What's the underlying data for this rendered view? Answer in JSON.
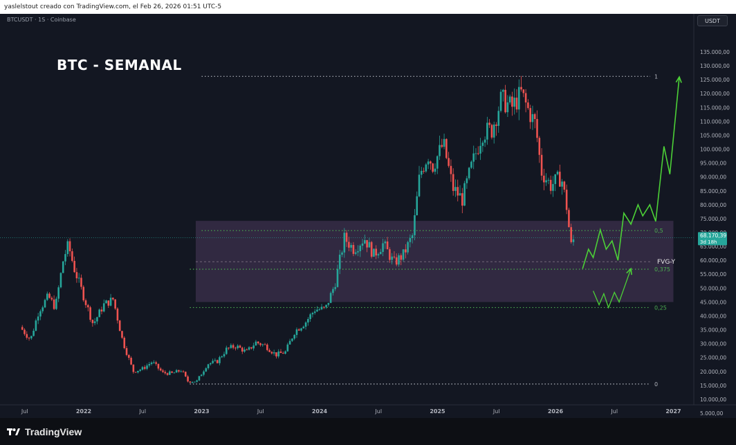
{
  "header": {
    "attribution": "yaslelstout creado con TradingView.com, el Feb 26, 2026 01:51 UTC-5"
  },
  "symbol_line": "BTCUSDT · 1S · Coinbase",
  "currency": "USDT",
  "brand": "TradingView",
  "colors": {
    "background": "#131722",
    "up_candle": "#26a69a",
    "down_candle": "#ef5350",
    "projection": "#4cd137",
    "zone": "#6b4a7a",
    "fib_white": "#b2b5be",
    "fib_green": "#4caf50"
  },
  "chart_data": {
    "type": "candlestick",
    "title": "BTC - SEMANAL",
    "timeframe": "weekly",
    "x_tick_labels": [
      "Jul",
      "2022",
      "Jul",
      "2023",
      "Jul",
      "2024",
      "Jul",
      "2025",
      "Jul",
      "2026",
      "Jul",
      "2027"
    ],
    "x_range": [
      "2021-05",
      "2027-02"
    ],
    "y_scale": "linear",
    "y_range": [
      5000,
      135000
    ],
    "y_tick_labels": [
      "135.000,00",
      "130.000,00",
      "125.000,00",
      "120.000,00",
      "115.000,00",
      "110.000,00",
      "105.000,00",
      "100.000,00",
      "95.000,00",
      "90.000,00",
      "85.000,00",
      "80.000,00",
      "75.000,00",
      "70.000,00",
      "65.000,00",
      "60.000,00",
      "55.000,00",
      "50.000,00",
      "45.000,00",
      "40.000,00",
      "35.000,00",
      "30.000,00",
      "25.000,00",
      "20.000,00",
      "15.000,00",
      "10.000,00",
      "5.000,00"
    ],
    "y_tick_values": [
      135000,
      130000,
      125000,
      120000,
      115000,
      110000,
      105000,
      100000,
      95000,
      90000,
      85000,
      80000,
      75000,
      70000,
      65000,
      60000,
      55000,
      50000,
      45000,
      40000,
      35000,
      30000,
      25000,
      20000,
      15000,
      10000,
      5000
    ],
    "last_price": {
      "label": "68.170,39",
      "value": 68170.39,
      "countdown": "3d 18h"
    },
    "fib_levels": [
      {
        "label": "1",
        "price": 126200,
        "color": "white"
      },
      {
        "label": "0,5",
        "price": 70700,
        "color": "green"
      },
      {
        "label": "0,375",
        "price": 56800,
        "color": "green"
      },
      {
        "label": "0,25",
        "price": 43000,
        "color": "green"
      },
      {
        "label": "0",
        "price": 15500,
        "color": "white"
      }
    ],
    "zone": {
      "label": "FVG-Y",
      "top": 74200,
      "bottom": 45000,
      "mid": 59500,
      "start": 2022.95,
      "end": 2027.0
    },
    "price_path": [
      [
        2021.46,
        36000
      ],
      [
        2021.55,
        31500
      ],
      [
        2021.62,
        42000
      ],
      [
        2021.7,
        47000
      ],
      [
        2021.76,
        43000
      ],
      [
        2021.83,
        61000
      ],
      [
        2021.87,
        65500
      ],
      [
        2021.92,
        57000
      ],
      [
        2022.0,
        47000
      ],
      [
        2022.08,
        37000
      ],
      [
        2022.17,
        44000
      ],
      [
        2022.25,
        46000
      ],
      [
        2022.33,
        31000
      ],
      [
        2022.42,
        20000
      ],
      [
        2022.5,
        21000
      ],
      [
        2022.58,
        23500
      ],
      [
        2022.67,
        19500
      ],
      [
        2022.75,
        19300
      ],
      [
        2022.83,
        20500
      ],
      [
        2022.88,
        16500
      ],
      [
        2022.96,
        16500
      ],
      [
        2023.05,
        22800
      ],
      [
        2023.13,
        23500
      ],
      [
        2023.21,
        28000
      ],
      [
        2023.29,
        29200
      ],
      [
        2023.38,
        27000
      ],
      [
        2023.46,
        30500
      ],
      [
        2023.54,
        29300
      ],
      [
        2023.63,
        26000
      ],
      [
        2023.71,
        27000
      ],
      [
        2023.79,
        34500
      ],
      [
        2023.88,
        37700
      ],
      [
        2023.96,
        42300
      ],
      [
        2024.05,
        42500
      ],
      [
        2024.13,
        51500
      ],
      [
        2024.21,
        68000
      ],
      [
        2024.29,
        64000
      ],
      [
        2024.38,
        68000
      ],
      [
        2024.46,
        62000
      ],
      [
        2024.54,
        66000
      ],
      [
        2024.63,
        59000
      ],
      [
        2024.71,
        62000
      ],
      [
        2024.79,
        69000
      ],
      [
        2024.85,
        91000
      ],
      [
        2024.92,
        98000
      ],
      [
        2024.96,
        94000
      ],
      [
        2025.05,
        102000
      ],
      [
        2025.13,
        86000
      ],
      [
        2025.21,
        82000
      ],
      [
        2025.29,
        94000
      ],
      [
        2025.38,
        106000
      ],
      [
        2025.46,
        107000
      ],
      [
        2025.54,
        118000
      ],
      [
        2025.63,
        115000
      ],
      [
        2025.71,
        120000
      ],
      [
        2025.77,
        114000
      ],
      [
        2025.83,
        109000
      ],
      [
        2025.88,
        92000
      ],
      [
        2025.96,
        87000
      ],
      [
        2026.05,
        90000
      ],
      [
        2026.1,
        78000
      ],
      [
        2026.13,
        65000
      ],
      [
        2026.16,
        68170
      ]
    ],
    "projection_primary": [
      [
        2026.23,
        57000
      ],
      [
        2026.28,
        64000
      ],
      [
        2026.32,
        61000
      ],
      [
        2026.38,
        71000
      ],
      [
        2026.43,
        64000
      ],
      [
        2026.48,
        67000
      ],
      [
        2026.53,
        60000
      ],
      [
        2026.58,
        77000
      ],
      [
        2026.64,
        73000
      ],
      [
        2026.7,
        80000
      ],
      [
        2026.74,
        76000
      ],
      [
        2026.8,
        80000
      ],
      [
        2026.85,
        74000
      ],
      [
        2026.92,
        101000
      ],
      [
        2026.97,
        91000
      ],
      [
        2027.05,
        126000
      ]
    ],
    "projection_alternate": [
      [
        2026.32,
        49000
      ],
      [
        2026.37,
        44000
      ],
      [
        2026.41,
        48000
      ],
      [
        2026.45,
        43000
      ],
      [
        2026.5,
        48500
      ],
      [
        2026.54,
        45000
      ],
      [
        2026.59,
        51000
      ],
      [
        2026.64,
        57000
      ]
    ]
  }
}
